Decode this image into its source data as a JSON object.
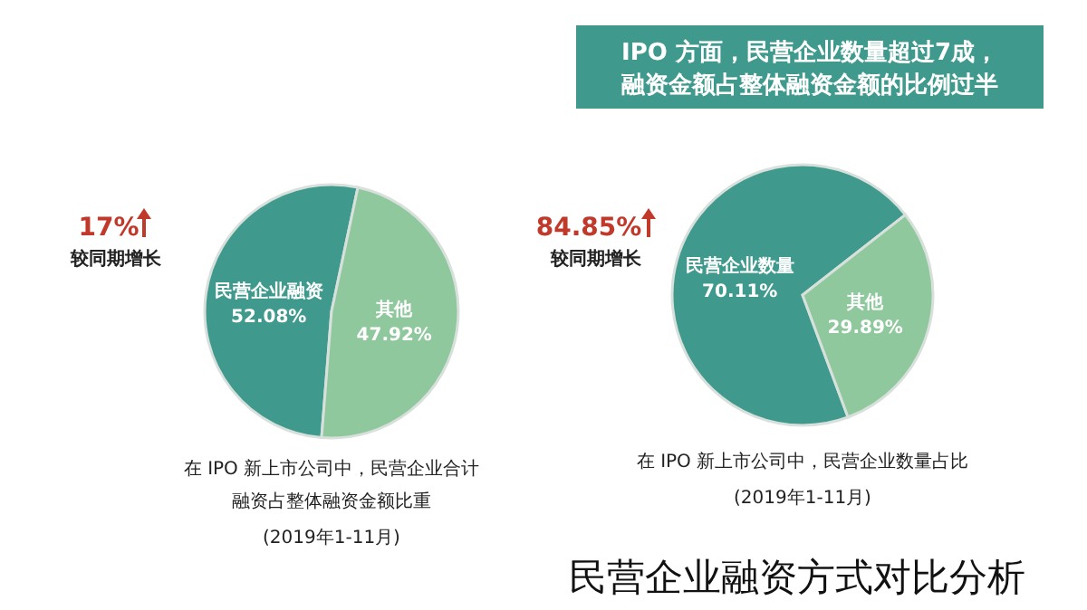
{
  "chart_data": [
    {
      "type": "pie",
      "categories": [
        "民营企业融资",
        "其他"
      ],
      "values": [
        52.08,
        47.92
      ],
      "colors": [
        "#3f9a8d",
        "#8ec89c"
      ],
      "data_labels": true,
      "value_labels": [
        "52.08%",
        "47.92%"
      ],
      "annotations": [
        "17%",
        "较同期增长",
        "在 IPO 新上市公司中，民营企业合计融资占整体融资金额比重",
        "(2019年1-11月)"
      ]
    },
    {
      "type": "pie",
      "title": "IPO 方面，民营企业数量超过7成，融资金额占整体融资金额的比例过半",
      "categories": [
        "民营企业数量",
        "其他"
      ],
      "values": [
        70.11,
        29.89
      ],
      "colors": [
        "#3f9a8d",
        "#8ec89c"
      ],
      "data_labels": true,
      "value_labels": [
        "70.11%",
        "29.89%"
      ],
      "annotations": [
        "84.85%",
        "较同期增长",
        "在 IPO 新上市公司中，民营企业数量占比",
        "(2019年1-11月)",
        "民营企业融资方式对比分析"
      ]
    }
  ]
}
